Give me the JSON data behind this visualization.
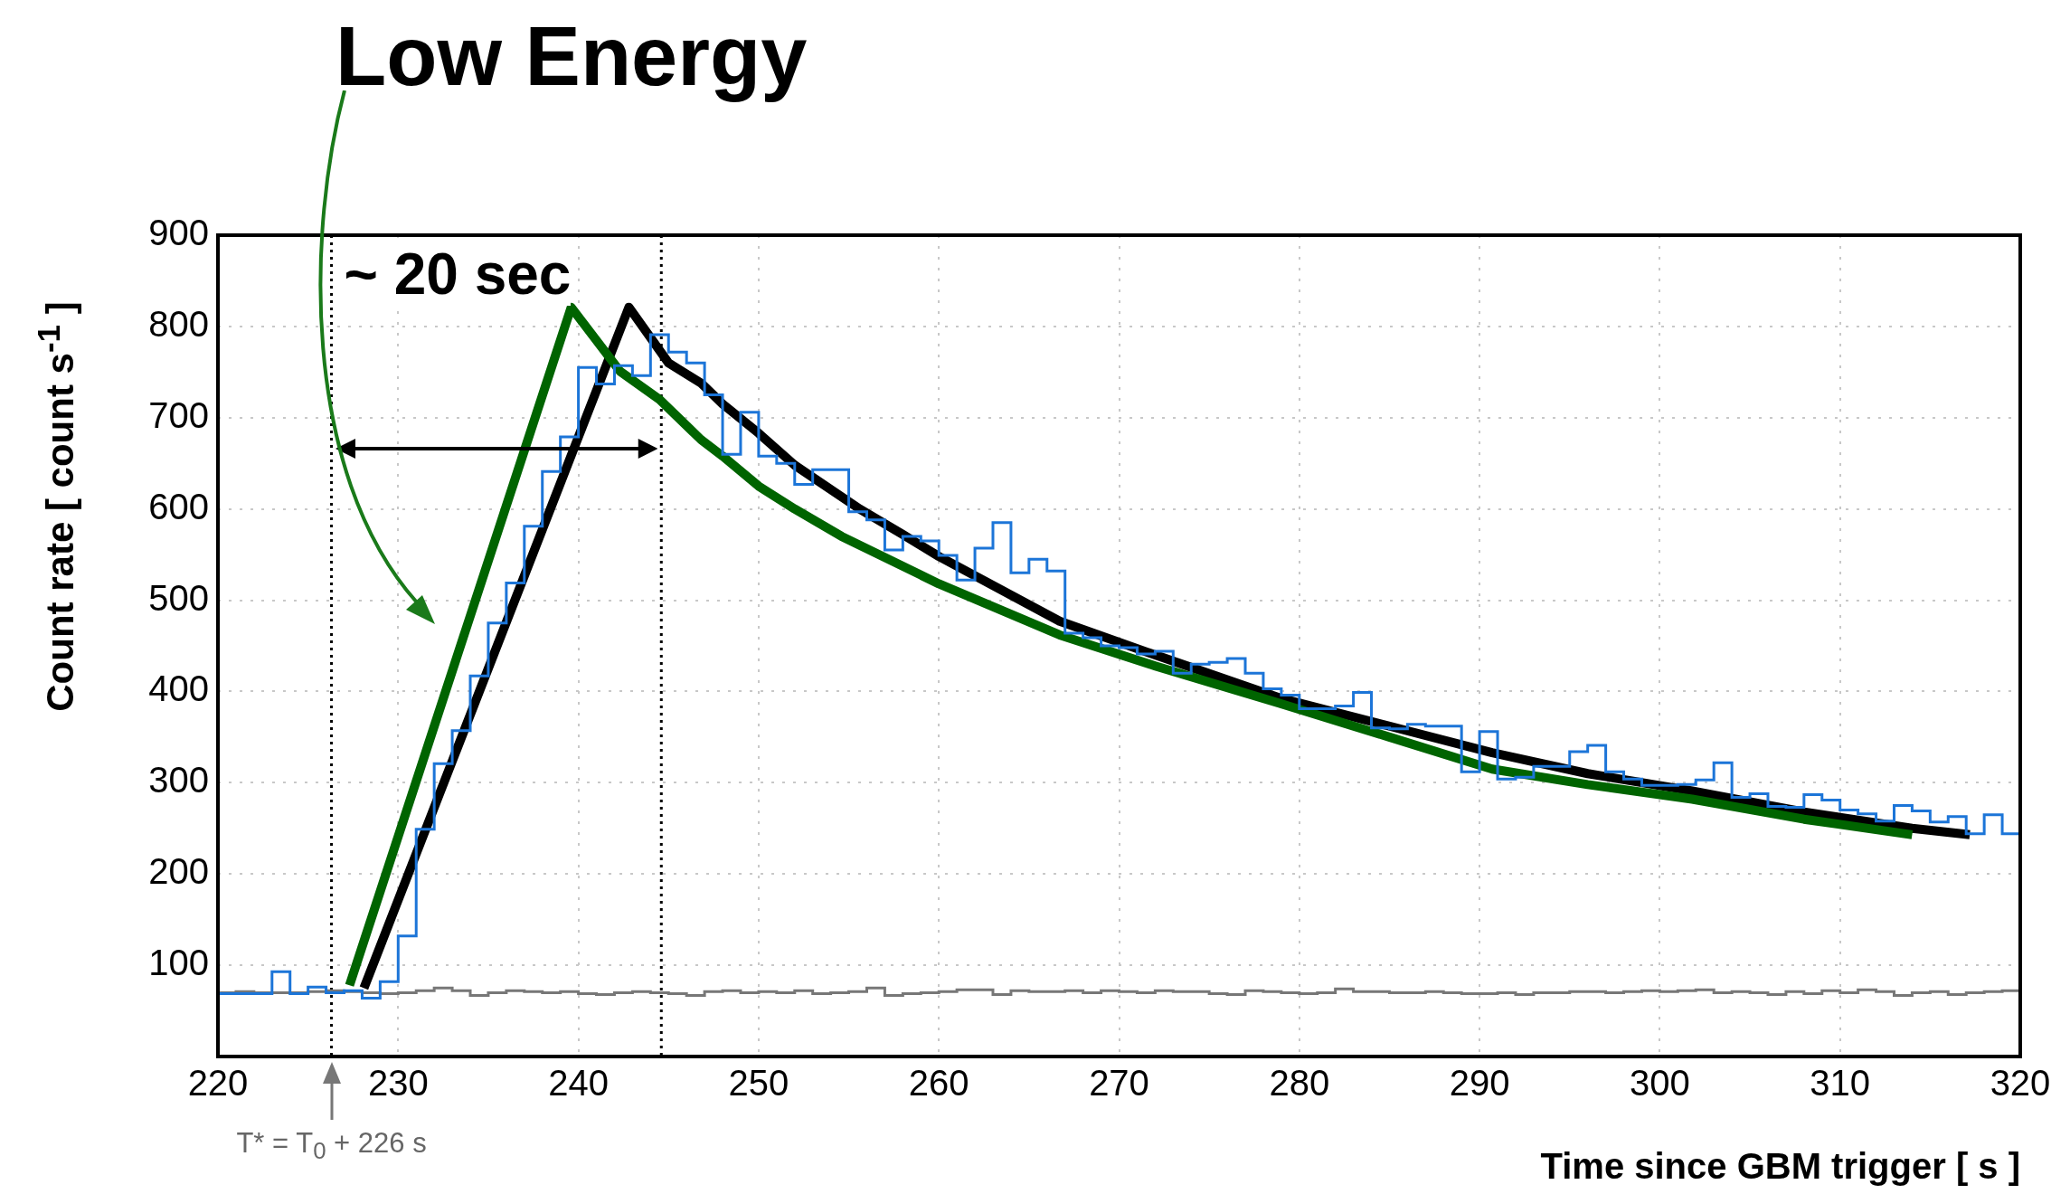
{
  "chart_data": {
    "type": "histogram",
    "title": "Low Energy",
    "xlabel": "Time since GBM trigger [ s ]",
    "ylabel": "Count rate [ count s$^{-1}$ ]",
    "annotations": [
      "~ 20 sec",
      "T* = T$_{0}$ + 226 s"
    ],
    "bins": [
      220,
      221,
      222,
      223,
      224,
      225,
      226,
      227,
      228,
      229,
      230,
      231,
      232,
      233,
      234,
      235,
      236,
      237,
      238,
      239,
      240,
      241,
      242,
      243,
      244,
      245,
      246,
      247,
      248,
      249,
      250,
      251,
      252,
      253,
      254,
      255,
      256,
      257,
      258,
      259,
      260,
      261,
      262,
      263,
      264,
      265,
      266,
      267,
      268,
      269,
      270,
      271,
      272,
      273,
      274,
      275,
      276,
      277,
      278,
      279,
      280,
      281,
      282,
      283,
      284,
      285,
      286,
      287,
      288,
      289,
      290,
      291,
      292,
      293,
      294,
      295,
      296,
      297,
      298,
      299,
      300,
      301,
      302,
      303,
      304,
      305,
      306,
      307,
      308,
      309,
      310,
      311,
      312,
      313,
      314,
      315,
      316,
      317,
      318,
      319,
      320
    ],
    "series": [
      {
        "color": "#1c75d8",
        "values": [
          69,
          69,
          69,
          93,
          69,
          76,
          70,
          72,
          64,
          82,
          132,
          249,
          321,
          357,
          417,
          475,
          519,
          581,
          641,
          679,
          755,
          737,
          757,
          746,
          791,
          772,
          760,
          725,
          660,
          706,
          658,
          650,
          627,
          643,
          643,
          597,
          588,
          555,
          570,
          565,
          549,
          522,
          557,
          585,
          530,
          545,
          532,
          464,
          459,
          450,
          448,
          441,
          444,
          420,
          430,
          432,
          436,
          420,
          403,
          396,
          381,
          381,
          384,
          399,
          360,
          359,
          364,
          362,
          362,
          312,
          356,
          304,
          306,
          318,
          318,
          334,
          341,
          312,
          304,
          297,
          297,
          298,
          303,
          322,
          284,
          288,
          274,
          273,
          287,
          281,
          270,
          266,
          258,
          275,
          269,
          257,
          263,
          244,
          265,
          244
        ]
      },
      {
        "color": "#777777",
        "values": [
          70,
          71,
          70,
          70,
          70,
          71,
          72,
          71,
          70,
          69,
          70,
          72,
          75,
          72,
          67,
          70,
          72,
          71,
          70,
          71,
          69,
          68,
          70,
          71,
          70,
          69,
          67,
          71,
          72,
          70,
          71,
          70,
          72,
          69,
          70,
          71,
          75,
          67,
          69,
          70,
          71,
          73,
          73,
          68,
          72,
          71,
          71,
          72,
          70,
          72,
          71,
          70,
          72,
          71,
          71,
          69,
          68,
          72,
          71,
          70,
          69,
          70,
          74,
          71,
          71,
          70,
          70,
          71,
          70,
          69,
          69,
          70,
          68,
          70,
          70,
          71,
          71,
          70,
          71,
          72,
          71,
          72,
          73,
          70,
          71,
          70,
          68,
          71,
          69,
          72,
          70,
          73,
          71,
          67,
          70,
          71,
          68,
          70,
          71,
          72
        ]
      },
      {
        "type": "line",
        "color": "#006400",
        "x": [
          227.3,
          239.6,
          242.3,
          244.5,
          246.8,
          248,
          250,
          252,
          254.6,
          260,
          266.7,
          272,
          278.9,
          285,
          290.7,
          296,
          301.8,
          308,
          314
        ],
        "values": [
          78,
          821,
          751,
          720,
          676,
          658,
          625,
          600,
          570,
          518,
          462,
          428,
          387,
          350,
          315,
          298,
          282,
          260,
          243
        ]
      },
      {
        "type": "line",
        "color": "#000000",
        "x": [
          228.1,
          242.8,
          245,
          246.8,
          248,
          250,
          252,
          255.6,
          258,
          260,
          266.7,
          272,
          278.9,
          285,
          290.7,
          296,
          301.8,
          308,
          314,
          317.2
        ],
        "values": [
          75,
          821,
          760,
          738,
          715,
          683,
          648,
          600,
          572,
          548,
          477,
          440,
          393,
          362,
          333,
          310,
          291,
          268,
          250,
          243
        ]
      }
    ],
    "xlim": [
      220,
      320
    ],
    "ylim": [
      0,
      900
    ],
    "xticks": [
      220,
      230,
      240,
      250,
      260,
      270,
      280,
      290,
      300,
      310,
      320
    ],
    "yticks": [
      100,
      200,
      300,
      400,
      500,
      600,
      700,
      800,
      900
    ],
    "grid": true,
    "marker": "none",
    "ref_lines": [
      {
        "axis": "x",
        "value": 226.3,
        "color": "#000000",
        "line_style": "dotted"
      },
      {
        "axis": "x",
        "value": 244.6,
        "color": "#000000",
        "line_style": "dotted"
      }
    ]
  }
}
